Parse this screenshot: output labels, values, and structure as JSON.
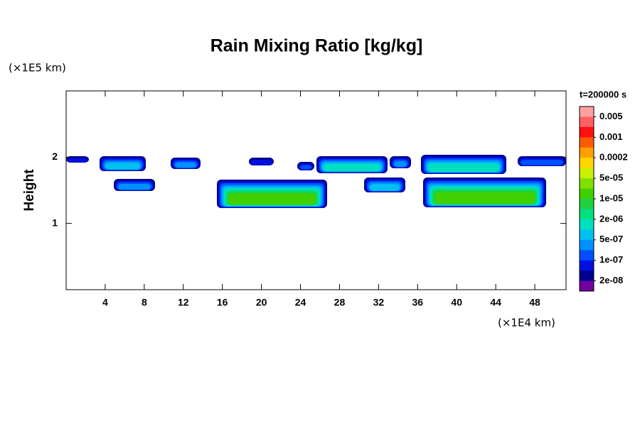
{
  "chart_data": {
    "type": "contour",
    "title": "Rain Mixing Ratio [kg/kg]",
    "y_unit": "(×1E5 km)",
    "x_unit": "(×1E4 km)",
    "ylabel": "Height",
    "time_label": "t=200000 s",
    "xlim": [
      0,
      51.2
    ],
    "xticks": [
      4,
      8,
      12,
      16,
      20,
      24,
      28,
      32,
      36,
      40,
      44,
      48
    ],
    "ylim": [
      0,
      3
    ],
    "yticks": [
      1,
      2
    ],
    "colorbar": {
      "colors": [
        "#ffa0a0",
        "#ff6060",
        "#ff1010",
        "#ff5a00",
        "#ffa000",
        "#ffd700",
        "#c8f000",
        "#80e000",
        "#40d000",
        "#20d040",
        "#00e080",
        "#00e0c0",
        "#00c0f0",
        "#0090ff",
        "#0050ff",
        "#0010e0",
        "#000090",
        "#7000a0"
      ],
      "levels": [
        0.005,
        0.001,
        0.0002,
        {
          "value": 5e-05,
          "label": "5e-05"
        },
        {
          "value": 1e-05,
          "label": "1e-05"
        },
        {
          "value": 2e-06,
          "label": "2e-06"
        },
        {
          "value": 5e-07,
          "label": "5e-07"
        },
        {
          "value": 1e-07,
          "label": "1e-07"
        },
        {
          "value": 2e-08,
          "label": "2e-08"
        }
      ]
    }
  }
}
